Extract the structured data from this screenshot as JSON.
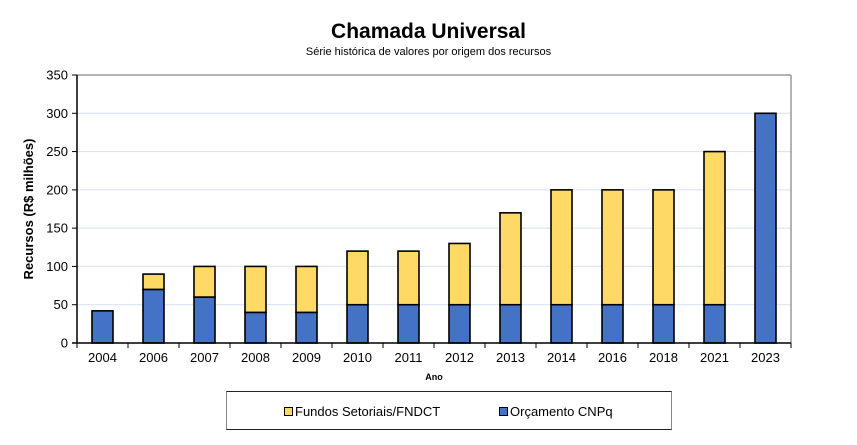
{
  "chart_data": {
    "type": "bar",
    "stacked": true,
    "title": "Chamada Universal",
    "subtitle": "Série histórica de valores por origem dos recursos",
    "xlabel": "Ano",
    "ylabel": "Recursos (R$ milhões)",
    "ylim": [
      0,
      350
    ],
    "yticks": [
      0,
      50,
      100,
      150,
      200,
      250,
      300,
      350
    ],
    "grid": true,
    "legend_position": "bottom",
    "categories": [
      "2004",
      "2006",
      "2007",
      "2008",
      "2009",
      "2010",
      "2011",
      "2012",
      "2013",
      "2014",
      "2016",
      "2018",
      "2021",
      "2023"
    ],
    "series": [
      {
        "name": "Orçamento CNPq",
        "color": "#4472C4",
        "values": [
          42,
          70,
          60,
          40,
          40,
          50,
          50,
          50,
          50,
          50,
          50,
          50,
          50,
          300
        ]
      },
      {
        "name": "Fundos Setoriais/FNDCT",
        "color": "#FFD966",
        "values": [
          0,
          20,
          40,
          60,
          60,
          70,
          70,
          80,
          120,
          150,
          150,
          150,
          200,
          0
        ]
      }
    ],
    "legend_order": [
      "Fundos Setoriais/FNDCT",
      "Orçamento CNPq"
    ]
  }
}
